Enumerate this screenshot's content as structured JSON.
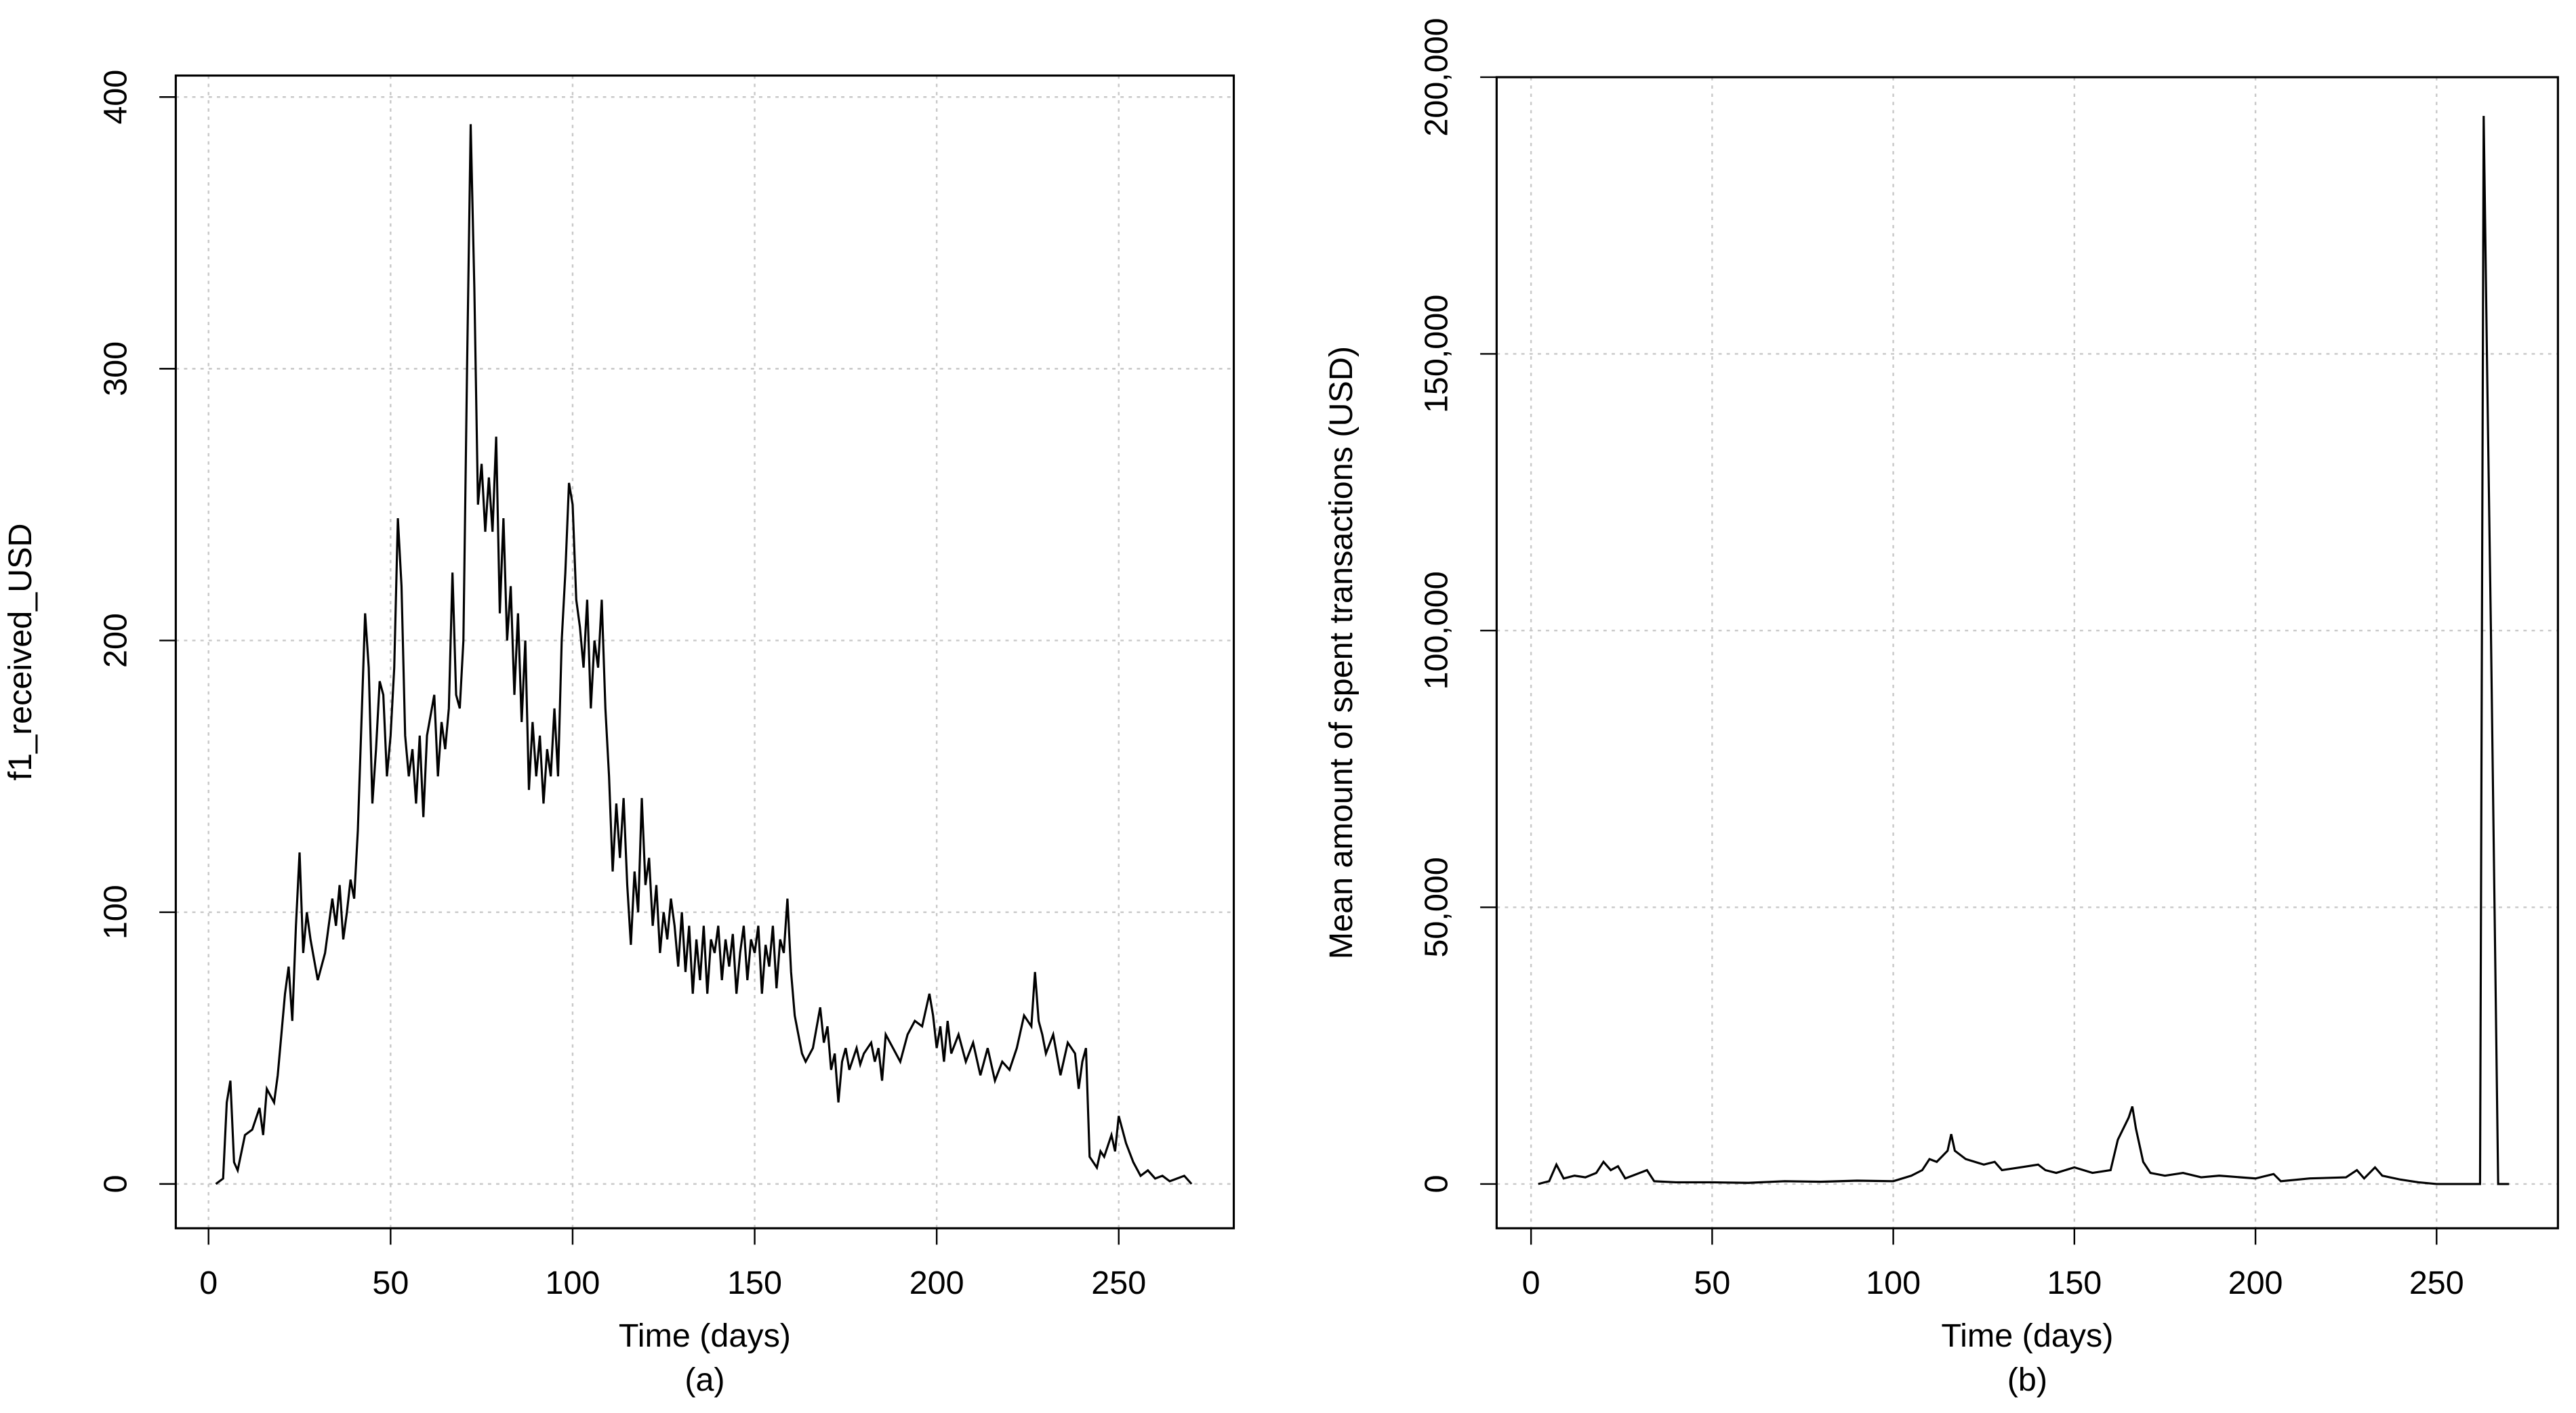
{
  "chart_data": [
    {
      "type": "line",
      "x_label": "Time (days)",
      "y_label": "f1_received_USD",
      "caption": "(a)",
      "color": "#000000",
      "grid": true,
      "xlim": [
        -9,
        281.6
      ],
      "ylim": [
        -16.3,
        407.9
      ],
      "xticks": [
        0,
        50,
        100,
        150,
        200,
        250
      ],
      "yticks": [
        0,
        100,
        200,
        300,
        400
      ],
      "x": [
        2,
        4,
        5,
        6,
        7,
        8,
        10,
        12,
        14,
        15,
        16,
        18,
        19,
        20,
        21,
        22,
        23,
        24,
        25,
        26,
        27,
        28,
        30,
        32,
        34,
        35,
        36,
        37,
        38,
        39,
        40,
        41,
        42,
        43,
        44,
        45,
        46,
        47,
        48,
        49,
        50,
        51,
        52,
        53,
        54,
        55,
        56,
        57,
        58,
        59,
        60,
        62,
        63,
        64,
        65,
        66,
        67,
        68,
        69,
        70,
        71,
        72,
        73,
        74,
        75,
        76,
        77,
        78,
        79,
        80,
        81,
        82,
        83,
        84,
        85,
        86,
        87,
        88,
        89,
        90,
        91,
        92,
        93,
        94,
        95,
        96,
        97,
        98,
        99,
        100,
        101,
        102,
        103,
        104,
        105,
        106,
        107,
        108,
        109,
        110,
        111,
        112,
        113,
        114,
        115,
        116,
        117,
        118,
        119,
        120,
        121,
        122,
        123,
        124,
        125,
        126,
        127,
        128,
        129,
        130,
        131,
        132,
        133,
        134,
        135,
        136,
        137,
        138,
        139,
        140,
        141,
        142,
        143,
        144,
        145,
        146,
        147,
        148,
        149,
        150,
        151,
        152,
        153,
        154,
        155,
        156,
        157,
        158,
        159,
        160,
        161,
        162,
        163,
        164,
        166,
        168,
        169,
        170,
        171,
        172,
        173,
        174,
        175,
        176,
        178,
        179,
        180,
        182,
        183,
        184,
        185,
        186,
        188,
        190,
        192,
        194,
        196,
        198,
        199,
        200,
        201,
        202,
        203,
        204,
        206,
        208,
        210,
        212,
        214,
        216,
        218,
        220,
        222,
        224,
        226,
        227,
        228,
        229,
        230,
        232,
        234,
        236,
        238,
        239,
        240,
        241,
        242,
        243,
        244,
        245,
        246,
        248,
        249,
        250,
        251,
        252,
        254,
        256,
        258,
        260,
        262,
        264,
        266,
        268,
        270
      ],
      "values": [
        0,
        2,
        30,
        38,
        8,
        5,
        18,
        20,
        28,
        18,
        35,
        30,
        40,
        55,
        70,
        80,
        60,
        95,
        122,
        85,
        100,
        90,
        75,
        85,
        105,
        95,
        110,
        90,
        100,
        112,
        105,
        130,
        170,
        210,
        190,
        140,
        160,
        185,
        180,
        150,
        165,
        190,
        245,
        220,
        165,
        150,
        160,
        140,
        165,
        135,
        165,
        180,
        150,
        170,
        160,
        175,
        225,
        180,
        175,
        200,
        300,
        390,
        330,
        250,
        265,
        240,
        260,
        240,
        275,
        210,
        245,
        200,
        220,
        180,
        210,
        170,
        200,
        145,
        170,
        150,
        165,
        140,
        160,
        150,
        175,
        150,
        200,
        225,
        258,
        250,
        215,
        205,
        190,
        215,
        175,
        200,
        190,
        215,
        175,
        150,
        115,
        140,
        120,
        142,
        110,
        88,
        115,
        100,
        142,
        110,
        120,
        95,
        110,
        85,
        100,
        90,
        105,
        95,
        80,
        100,
        78,
        95,
        70,
        90,
        75,
        95,
        70,
        90,
        85,
        95,
        75,
        90,
        80,
        92,
        70,
        85,
        95,
        75,
        90,
        85,
        95,
        70,
        88,
        80,
        95,
        72,
        90,
        85,
        105,
        78,
        62,
        55,
        48,
        45,
        50,
        65,
        52,
        58,
        42,
        48,
        30,
        45,
        50,
        42,
        50,
        44,
        48,
        52,
        45,
        50,
        38,
        55,
        50,
        45,
        55,
        60,
        58,
        70,
        62,
        50,
        58,
        45,
        60,
        48,
        55,
        45,
        52,
        40,
        50,
        38,
        45,
        42,
        50,
        62,
        58,
        78,
        60,
        55,
        48,
        55,
        40,
        52,
        48,
        35,
        45,
        50,
        10,
        8,
        6,
        12,
        10,
        18,
        12,
        25,
        20,
        15,
        8,
        3,
        5,
        2,
        3,
        1,
        2,
        3,
        0
      ]
    },
    {
      "type": "line",
      "x_label": "Time (days)",
      "y_label": "Mean amount of spent transactions (USD)",
      "caption": "(b)",
      "color": "#000000",
      "grid": true,
      "xlim": [
        -9.5,
        283.5
      ],
      "ylim": [
        -8000,
        200000
      ],
      "xticks": [
        0,
        50,
        100,
        150,
        200,
        250
      ],
      "yticks": [
        0,
        {
          "value": 50000,
          "label": "50,000"
        },
        {
          "value": 100000,
          "label": "100,000"
        },
        {
          "value": 150000,
          "label": "150,000"
        },
        {
          "value": 200000,
          "label": "200,000"
        }
      ],
      "x": [
        2,
        5,
        7,
        9,
        12,
        15,
        18,
        20,
        22,
        24,
        26,
        30,
        32,
        34,
        40,
        50,
        60,
        70,
        80,
        90,
        100,
        105,
        108,
        110,
        112,
        115,
        116,
        117,
        120,
        125,
        128,
        130,
        135,
        140,
        142,
        145,
        150,
        155,
        160,
        162,
        165,
        166,
        167,
        169,
        171,
        175,
        180,
        185,
        190,
        200,
        205,
        207,
        215,
        225,
        228,
        230,
        233,
        235,
        240,
        245,
        250,
        255,
        260,
        262,
        263,
        264,
        265,
        266,
        267,
        270
      ],
      "values": [
        0,
        500,
        3500,
        1000,
        1500,
        1200,
        2000,
        4000,
        2500,
        3200,
        1000,
        2000,
        2500,
        500,
        300,
        300,
        200,
        500,
        400,
        600,
        500,
        1500,
        2500,
        4500,
        4000,
        6000,
        9000,
        6000,
        4500,
        3500,
        4000,
        2500,
        3000,
        3500,
        2500,
        2000,
        3000,
        2000,
        2500,
        8000,
        12000,
        14000,
        10000,
        4000,
        2000,
        1500,
        2000,
        1200,
        1500,
        1000,
        1800,
        500,
        1000,
        1200,
        2500,
        1000,
        3000,
        1500,
        800,
        300,
        0,
        0,
        0,
        0,
        193000,
        145000,
        100000,
        50000,
        0,
        0
      ]
    }
  ]
}
